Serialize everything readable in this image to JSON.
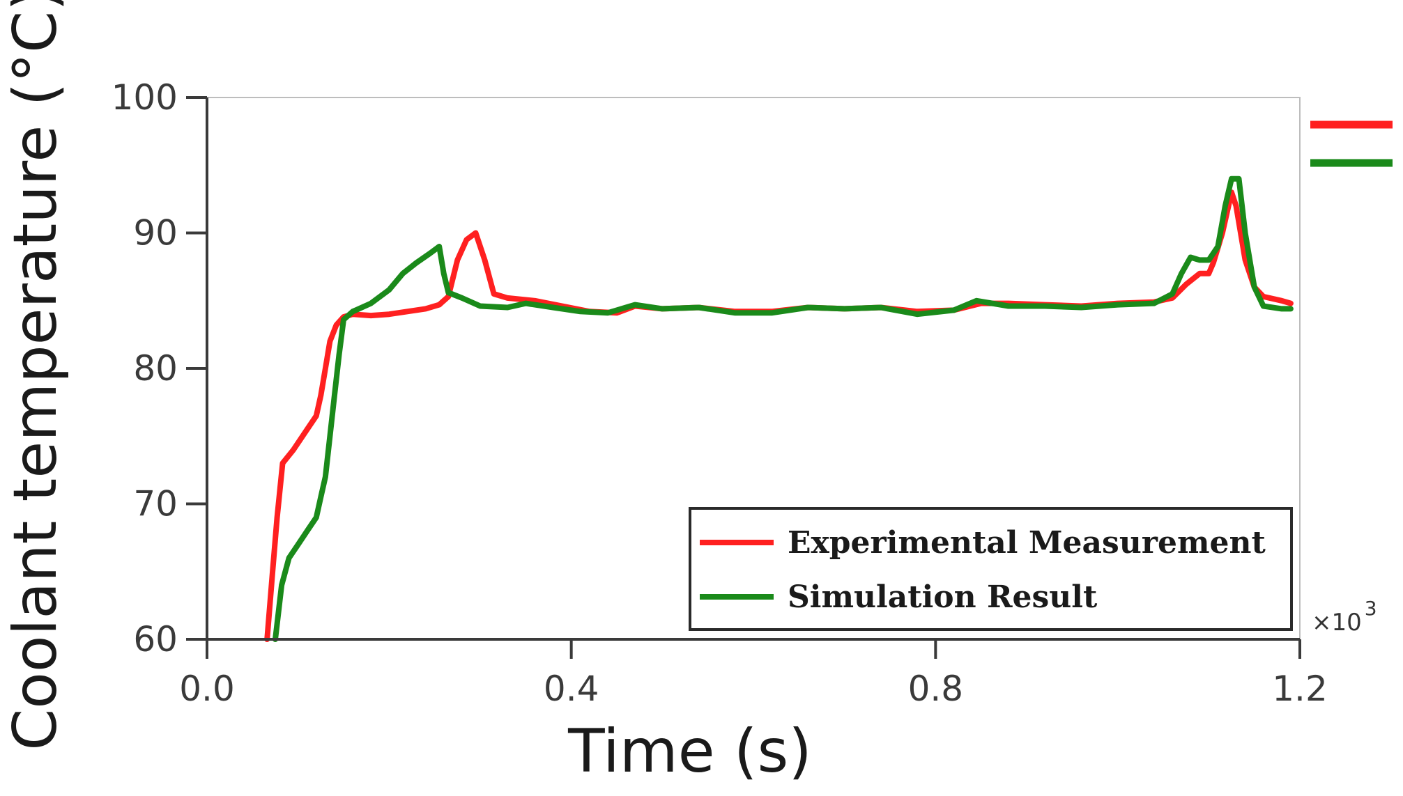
{
  "chart_data": {
    "type": "line",
    "title": "",
    "xlabel": "Time  (s)",
    "ylabel": "Coolant temperature (°C)",
    "x_multiplier": "×10",
    "x_multiplier_exp": "3",
    "xlim": [
      0,
      1.2
    ],
    "ylim": [
      60,
      100
    ],
    "xticks": [
      0.0,
      0.4,
      0.8,
      1.2
    ],
    "xtick_labels": [
      "0.0",
      "0.4",
      "0.8",
      "1.2"
    ],
    "yticks": [
      60,
      70,
      80,
      90,
      100
    ],
    "ytick_labels": [
      "60",
      "70",
      "80",
      "90",
      "100"
    ],
    "legend": {
      "placement": "bottom-right",
      "entries": [
        "Experimental Measurement",
        "Simulation Result"
      ]
    },
    "series": [
      {
        "name": "Experimental Measurement",
        "color": "#ff2020",
        "points": [
          [
            0.066,
            60
          ],
          [
            0.072,
            65
          ],
          [
            0.077,
            69
          ],
          [
            0.083,
            73
          ],
          [
            0.095,
            74
          ],
          [
            0.11,
            75.5
          ],
          [
            0.12,
            76.5
          ],
          [
            0.125,
            78
          ],
          [
            0.13,
            80
          ],
          [
            0.135,
            82
          ],
          [
            0.142,
            83.2
          ],
          [
            0.15,
            83.8
          ],
          [
            0.16,
            84
          ],
          [
            0.18,
            83.9
          ],
          [
            0.2,
            84
          ],
          [
            0.22,
            84.2
          ],
          [
            0.24,
            84.4
          ],
          [
            0.255,
            84.7
          ],
          [
            0.265,
            85.3
          ],
          [
            0.275,
            88
          ],
          [
            0.285,
            89.5
          ],
          [
            0.295,
            90
          ],
          [
            0.305,
            88
          ],
          [
            0.315,
            85.5
          ],
          [
            0.33,
            85.2
          ],
          [
            0.36,
            85
          ],
          [
            0.39,
            84.6
          ],
          [
            0.42,
            84.2
          ],
          [
            0.45,
            84.1
          ],
          [
            0.47,
            84.6
          ],
          [
            0.5,
            84.4
          ],
          [
            0.54,
            84.5
          ],
          [
            0.58,
            84.2
          ],
          [
            0.62,
            84.2
          ],
          [
            0.66,
            84.5
          ],
          [
            0.7,
            84.4
          ],
          [
            0.74,
            84.5
          ],
          [
            0.78,
            84.2
          ],
          [
            0.82,
            84.3
          ],
          [
            0.85,
            84.8
          ],
          [
            0.88,
            84.8
          ],
          [
            0.92,
            84.7
          ],
          [
            0.96,
            84.6
          ],
          [
            1.0,
            84.8
          ],
          [
            1.04,
            84.9
          ],
          [
            1.06,
            85.2
          ],
          [
            1.075,
            86.2
          ],
          [
            1.09,
            87
          ],
          [
            1.1,
            87
          ],
          [
            1.105,
            87.8
          ],
          [
            1.115,
            90
          ],
          [
            1.125,
            93
          ],
          [
            1.13,
            92
          ],
          [
            1.14,
            88
          ],
          [
            1.15,
            86
          ],
          [
            1.16,
            85.3
          ],
          [
            1.18,
            85
          ],
          [
            1.19,
            84.8
          ]
        ]
      },
      {
        "name": "Simulation Result",
        "color": "#1a8a1a",
        "points": [
          [
            0.075,
            60
          ],
          [
            0.082,
            64
          ],
          [
            0.09,
            66
          ],
          [
            0.1,
            67
          ],
          [
            0.11,
            68
          ],
          [
            0.12,
            69
          ],
          [
            0.125,
            70.5
          ],
          [
            0.13,
            72
          ],
          [
            0.135,
            75
          ],
          [
            0.14,
            78
          ],
          [
            0.145,
            81
          ],
          [
            0.15,
            83.6
          ],
          [
            0.16,
            84.2
          ],
          [
            0.18,
            84.8
          ],
          [
            0.2,
            85.8
          ],
          [
            0.215,
            87
          ],
          [
            0.23,
            87.8
          ],
          [
            0.245,
            88.5
          ],
          [
            0.255,
            89
          ],
          [
            0.26,
            87
          ],
          [
            0.265,
            85.6
          ],
          [
            0.28,
            85.2
          ],
          [
            0.3,
            84.6
          ],
          [
            0.33,
            84.5
          ],
          [
            0.35,
            84.8
          ],
          [
            0.38,
            84.5
          ],
          [
            0.41,
            84.2
          ],
          [
            0.44,
            84.1
          ],
          [
            0.47,
            84.7
          ],
          [
            0.5,
            84.4
          ],
          [
            0.54,
            84.5
          ],
          [
            0.58,
            84.1
          ],
          [
            0.62,
            84.1
          ],
          [
            0.66,
            84.5
          ],
          [
            0.7,
            84.4
          ],
          [
            0.74,
            84.5
          ],
          [
            0.78,
            84
          ],
          [
            0.82,
            84.3
          ],
          [
            0.845,
            85
          ],
          [
            0.88,
            84.6
          ],
          [
            0.92,
            84.6
          ],
          [
            0.96,
            84.5
          ],
          [
            1.0,
            84.7
          ],
          [
            1.04,
            84.8
          ],
          [
            1.06,
            85.5
          ],
          [
            1.07,
            87
          ],
          [
            1.08,
            88.2
          ],
          [
            1.09,
            88
          ],
          [
            1.1,
            88
          ],
          [
            1.11,
            89
          ],
          [
            1.118,
            92
          ],
          [
            1.125,
            94
          ],
          [
            1.133,
            94
          ],
          [
            1.14,
            90
          ],
          [
            1.15,
            86
          ],
          [
            1.16,
            84.6
          ],
          [
            1.18,
            84.4
          ],
          [
            1.19,
            84.4
          ]
        ]
      }
    ]
  }
}
